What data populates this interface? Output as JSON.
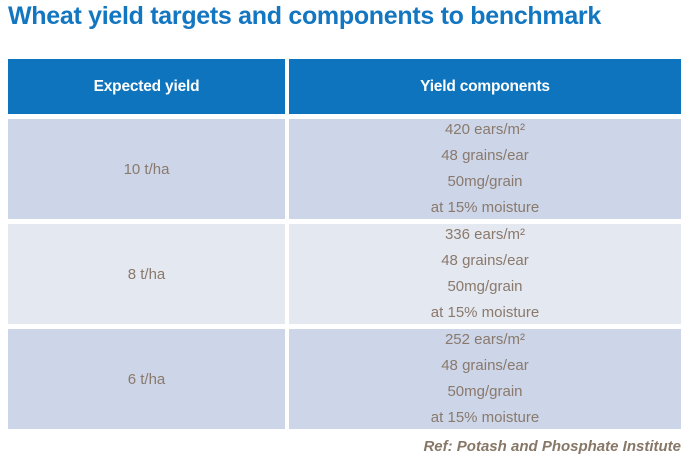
{
  "title": "Wheat yield targets and components to benchmark",
  "table": {
    "headers": {
      "expected_yield": "Expected yield",
      "yield_components": "Yield components"
    },
    "rows": [
      {
        "expected_yield": "10 t/ha",
        "components": [
          "420 ears/m²",
          "48 grains/ear",
          "50mg/grain",
          "at 15% moisture"
        ]
      },
      {
        "expected_yield": "8 t/ha",
        "components": [
          "336 ears/m²",
          "48 grains/ear",
          "50mg/grain",
          "at 15% moisture"
        ]
      },
      {
        "expected_yield": "6 t/ha",
        "components": [
          "252 ears/m²",
          "48 grains/ear",
          "50mg/grain",
          "at 15% moisture"
        ]
      }
    ]
  },
  "footer": {
    "reference": "Ref: Potash and Phosphate Institute"
  },
  "colors": {
    "title": "#1376c0",
    "header_bg": "#0d74bd",
    "header_text": "#ffffff",
    "row_odd_bg": "#ccd6e8",
    "row_even_bg": "#e4e8f0",
    "body_text": "#8a796c",
    "footer_text": "#877767"
  }
}
